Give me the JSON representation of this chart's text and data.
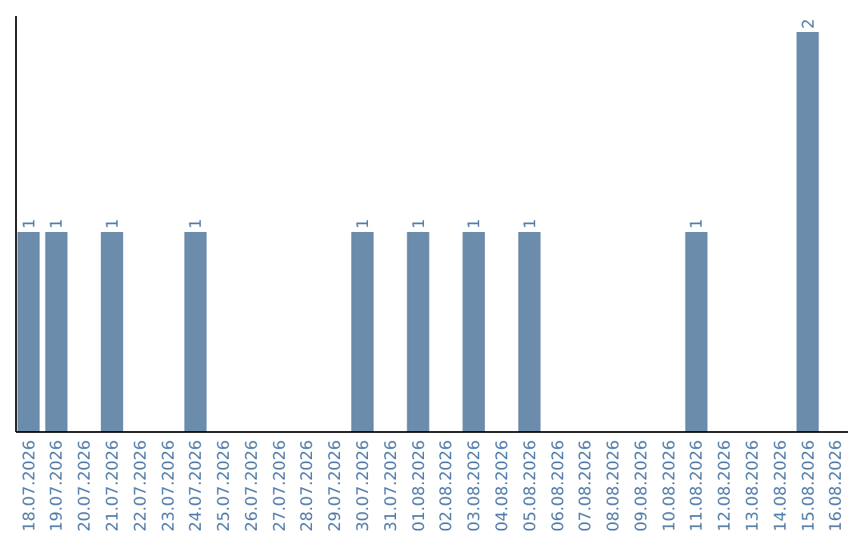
{
  "chart_data": {
    "type": "bar",
    "categories": [
      "18.07.2026",
      "19.07.2026",
      "20.07.2026",
      "21.07.2026",
      "22.07.2026",
      "23.07.2026",
      "24.07.2026",
      "25.07.2026",
      "26.07.2026",
      "27.07.2026",
      "28.07.2026",
      "29.07.2026",
      "30.07.2026",
      "31.07.2026",
      "01.08.2026",
      "02.08.2026",
      "03.08.2026",
      "04.08.2026",
      "05.08.2026",
      "06.08.2026",
      "07.08.2026",
      "08.08.2026",
      "09.08.2026",
      "10.08.2026",
      "11.08.2026",
      "12.08.2026",
      "13.08.2026",
      "14.08.2026",
      "15.08.2026",
      "16.08.2026"
    ],
    "values": [
      1,
      1,
      0,
      1,
      0,
      0,
      1,
      0,
      0,
      0,
      0,
      0,
      1,
      0,
      1,
      0,
      1,
      0,
      1,
      0,
      0,
      0,
      0,
      0,
      1,
      0,
      0,
      0,
      2,
      0
    ],
    "value_labels": [
      "1",
      "1",
      null,
      "1",
      null,
      null,
      "1",
      null,
      null,
      null,
      null,
      null,
      "1",
      null,
      "1",
      null,
      "1",
      null,
      "1",
      null,
      null,
      null,
      null,
      null,
      "1",
      null,
      null,
      null,
      "2",
      null
    ],
    "color": "#6b8cab"
  }
}
